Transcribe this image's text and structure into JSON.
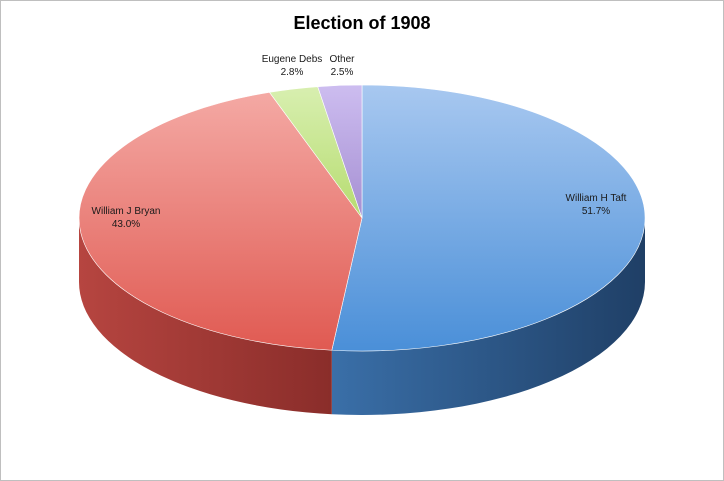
{
  "chart_data": {
    "type": "pie",
    "title": "Election of 1908",
    "style": "3d",
    "legend": "none",
    "slices": [
      {
        "name": "William H Taft",
        "percent": "51.7%",
        "value": 51.7,
        "color": "#5b9bd5"
      },
      {
        "name": "William J Bryan",
        "percent": "43.0%",
        "value": 43.0,
        "color": "#e8625a"
      },
      {
        "name": "Eugene Debs",
        "percent": "2.8%",
        "value": 2.8,
        "color": "#c4e48a"
      },
      {
        "name": "Other",
        "percent": "2.5%",
        "value": 2.5,
        "color": "#b9a4dc"
      }
    ]
  }
}
